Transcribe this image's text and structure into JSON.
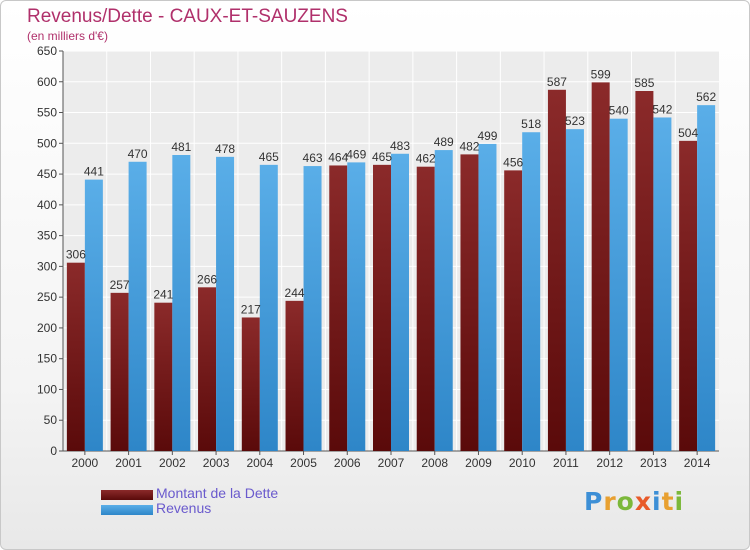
{
  "header": {
    "title": "Revenus/Dette - CAUX-ET-SAUZENS",
    "subtitle": "(en milliers d'€)"
  },
  "legend": {
    "debt_label": "Montant de la Dette",
    "revenue_label": "Revenus"
  },
  "logo": {
    "text": "Proxiti"
  },
  "colors": {
    "debt": "#8b2a2a",
    "debt_dark": "#5a0a0a",
    "revenue": "#5aaee8",
    "revenue_dark": "#2e86c8",
    "title": "#b0306b",
    "legend_text": "#6a5acd"
  },
  "chart_data": {
    "type": "bar",
    "title": "Revenus/Dette - CAUX-ET-SAUZENS",
    "subtitle": "(en milliers d'€)",
    "xlabel": "",
    "ylabel": "",
    "categories": [
      "2000",
      "2001",
      "2002",
      "2003",
      "2004",
      "2005",
      "2006",
      "2007",
      "2008",
      "2009",
      "2010",
      "2011",
      "2012",
      "2013",
      "2014"
    ],
    "series": [
      {
        "name": "Montant de la Dette",
        "values": [
          306,
          257,
          241,
          266,
          217,
          244,
          464,
          465,
          462,
          482,
          456,
          587,
          599,
          585,
          504
        ]
      },
      {
        "name": "Revenus",
        "values": [
          441,
          470,
          481,
          478,
          465,
          463,
          469,
          483,
          489,
          499,
          518,
          523,
          540,
          542,
          562
        ]
      }
    ],
    "ylim": [
      0,
      650
    ],
    "yticks": [
      0,
      50,
      100,
      150,
      200,
      250,
      300,
      350,
      400,
      450,
      500,
      550,
      600,
      650
    ],
    "grid": true,
    "legend_position": "bottom-left"
  }
}
